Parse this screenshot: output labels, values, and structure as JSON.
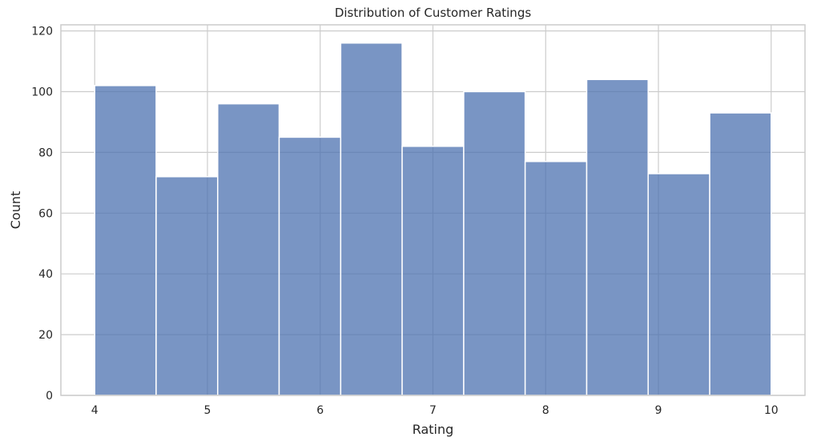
{
  "chart_data": {
    "type": "bar",
    "subtype": "histogram",
    "title": "Distribution of Customer Ratings",
    "xlabel": "Rating",
    "ylabel": "Count",
    "bin_edges": [
      4.0,
      4.545,
      5.091,
      5.636,
      6.182,
      6.727,
      7.273,
      7.818,
      8.364,
      8.909,
      9.455,
      10.0
    ],
    "values": [
      102,
      72,
      96,
      85,
      116,
      82,
      100,
      77,
      104,
      73,
      93
    ],
    "xlim": [
      3.7,
      10.3
    ],
    "ylim": [
      0,
      122
    ],
    "xticks": [
      4,
      5,
      6,
      7,
      8,
      9,
      10
    ],
    "yticks": [
      0,
      20,
      40,
      60,
      80,
      100,
      120
    ],
    "grid": true,
    "bar_color": "#4c72b0",
    "bar_opacity": 0.75,
    "edge_color": "#ffffff",
    "grid_color": "#cccccc",
    "axes_edge_color": "#cccccc",
    "text_color": "#262626"
  }
}
